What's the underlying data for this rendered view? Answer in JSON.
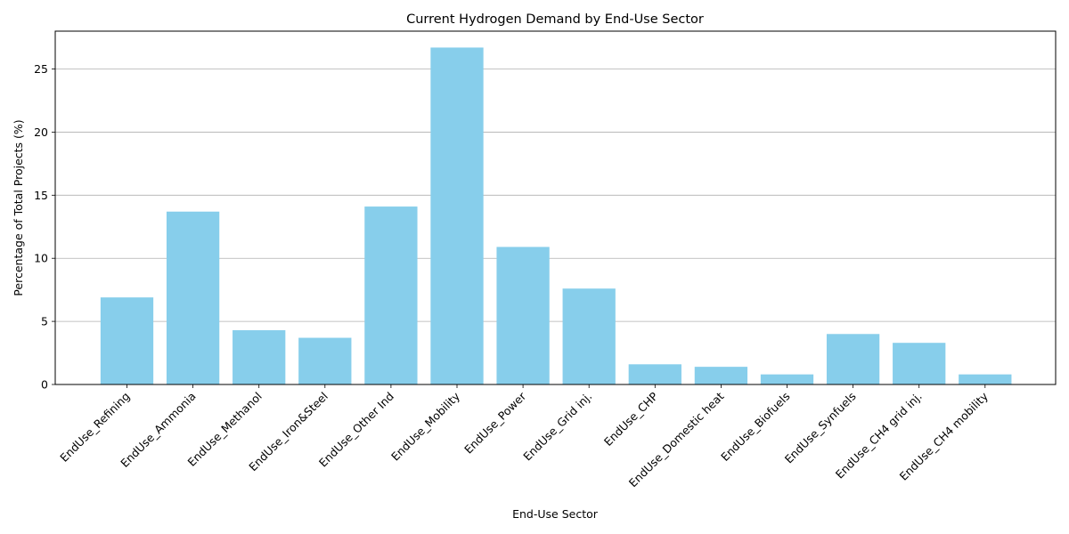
{
  "chart_data": {
    "type": "bar",
    "title": "Current Hydrogen Demand by End-Use Sector",
    "xlabel": "End-Use Sector",
    "ylabel": "Percentage of Total Projects (%)",
    "categories": [
      "EndUse_Refining",
      "EndUse_Ammonia",
      "EndUse_Methanol",
      "EndUse_Iron&Steel",
      "EndUse_Other Ind",
      "EndUse_Mobility",
      "EndUse_Power",
      "EndUse_Grid inj.",
      "EndUse_CHP",
      "EndUse_Domestic heat",
      "EndUse_Biofuels",
      "EndUse_Synfuels",
      "EndUse_CH4 grid inj.",
      "EndUse_CH4 mobility"
    ],
    "values": [
      6.9,
      13.7,
      4.3,
      3.7,
      14.1,
      26.7,
      10.9,
      7.6,
      1.6,
      1.4,
      0.8,
      4.0,
      3.3,
      0.8
    ],
    "ylim": [
      0,
      28
    ],
    "yticks": [
      0,
      5,
      10,
      15,
      20,
      25
    ],
    "grid": "y",
    "bar_color": "#87ceeb",
    "tick_label_rotation": 45
  }
}
